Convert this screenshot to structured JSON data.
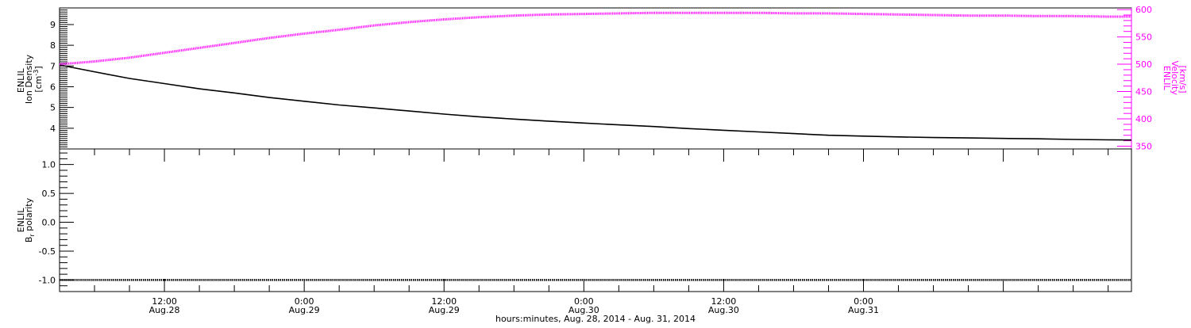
{
  "chart_data": [
    {
      "type": "line",
      "panel": "top",
      "x_range": [
        "2014-08-28T03:00",
        "2014-08-31T23:00"
      ],
      "left_axis": {
        "label_line1": "ENLIL",
        "label_line2": "Ion Density",
        "label_line3": "[cm",
        "label_line3_sup": "-3",
        "label_line3_end": "]",
        "ylim": [
          3.0,
          9.8
        ],
        "ticks": [
          "4",
          "5",
          "6",
          "7",
          "8",
          "9"
        ]
      },
      "right_axis": {
        "label_line1": "ENLIL",
        "label_line2": "Velocity",
        "label_line3": "[km/s]",
        "ylim": [
          345,
          603
        ],
        "ticks": [
          "350",
          "400",
          "450",
          "500",
          "550",
          "600"
        ],
        "color": "#ff00ff"
      },
      "series": [
        {
          "axis": "left",
          "color": "#000000",
          "points": [
            [
              "2014-08-28T03:00",
              7.05
            ],
            [
              "2014-08-28T06:00",
              6.72
            ],
            [
              "2014-08-28T09:00",
              6.4
            ],
            [
              "2014-08-28T12:00",
              6.15
            ],
            [
              "2014-08-28T15:00",
              5.9
            ],
            [
              "2014-08-28T18:00",
              5.7
            ],
            [
              "2014-08-28T21:00",
              5.48
            ],
            [
              "2014-08-29T00:00",
              5.3
            ],
            [
              "2014-08-29T03:00",
              5.12
            ],
            [
              "2014-08-29T06:00",
              4.98
            ],
            [
              "2014-08-29T09:00",
              4.83
            ],
            [
              "2014-08-29T12:00",
              4.68
            ],
            [
              "2014-08-29T15:00",
              4.55
            ],
            [
              "2014-08-29T18:00",
              4.44
            ],
            [
              "2014-08-29T21:00",
              4.34
            ],
            [
              "2014-08-30T00:00",
              4.25
            ],
            [
              "2014-08-30T03:00",
              4.16
            ],
            [
              "2014-08-30T06:00",
              4.08
            ],
            [
              "2014-08-30T09:00",
              3.98
            ],
            [
              "2014-08-30T12:00",
              3.9
            ],
            [
              "2014-08-30T15:00",
              3.82
            ],
            [
              "2014-08-30T18:00",
              3.74
            ],
            [
              "2014-08-30T21:00",
              3.66
            ],
            [
              "2014-08-31T00:00",
              3.62
            ],
            [
              "2014-08-31T03:00",
              3.58
            ],
            [
              "2014-08-31T06:00",
              3.55
            ],
            [
              "2014-08-31T09:00",
              3.53
            ],
            [
              "2014-08-31T12:00",
              3.51
            ],
            [
              "2014-08-31T15:00",
              3.49
            ],
            [
              "2014-08-31T18:00",
              3.46
            ],
            [
              "2014-08-31T21:00",
              3.44
            ],
            [
              "2014-08-31T23:00",
              3.43
            ]
          ]
        },
        {
          "axis": "right",
          "color": "#ff00ff",
          "points": [
            [
              "2014-08-28T03:00",
              500
            ],
            [
              "2014-08-28T06:00",
              505
            ],
            [
              "2014-08-28T09:00",
              512
            ],
            [
              "2014-08-28T12:00",
              521
            ],
            [
              "2014-08-28T15:00",
              530
            ],
            [
              "2014-08-28T18:00",
              539
            ],
            [
              "2014-08-28T21:00",
              548
            ],
            [
              "2014-08-29T00:00",
              556
            ],
            [
              "2014-08-29T03:00",
              563
            ],
            [
              "2014-08-29T06:00",
              571
            ],
            [
              "2014-08-29T09:00",
              577
            ],
            [
              "2014-08-29T12:00",
              582
            ],
            [
              "2014-08-29T15:00",
              586
            ],
            [
              "2014-08-29T18:00",
              589
            ],
            [
              "2014-08-29T21:00",
              591
            ],
            [
              "2014-08-30T00:00",
              592
            ],
            [
              "2014-08-30T03:00",
              593
            ],
            [
              "2014-08-30T06:00",
              594
            ],
            [
              "2014-08-30T09:00",
              594
            ],
            [
              "2014-08-30T12:00",
              594
            ],
            [
              "2014-08-30T15:00",
              594
            ],
            [
              "2014-08-30T18:00",
              593
            ],
            [
              "2014-08-30T21:00",
              593
            ],
            [
              "2014-08-31T00:00",
              592
            ],
            [
              "2014-08-31T03:00",
              591
            ],
            [
              "2014-08-31T06:00",
              590
            ],
            [
              "2014-08-31T09:00",
              589
            ],
            [
              "2014-08-31T12:00",
              589
            ],
            [
              "2014-08-31T15:00",
              588
            ],
            [
              "2014-08-31T18:00",
              588
            ],
            [
              "2014-08-31T21:00",
              587
            ],
            [
              "2014-08-31T23:00",
              587
            ]
          ]
        }
      ]
    },
    {
      "type": "line",
      "panel": "bottom",
      "x_range": [
        "2014-08-28T03:00",
        "2014-08-31T23:00"
      ],
      "left_axis": {
        "label_line1": "ENLIL",
        "label_line2": "B",
        "label_line2_sub": "r",
        "label_line2_end": " polarity",
        "ylim": [
          -1.2,
          1.27
        ],
        "ticks": [
          "-1.0",
          "-0.5",
          "0.0",
          "0.5",
          "1.0"
        ]
      },
      "series": [
        {
          "axis": "left",
          "color": "#000000",
          "points": [
            [
              "2014-08-28T03:00",
              -1.0
            ],
            [
              "2014-08-31T23:00",
              -1.0
            ]
          ]
        }
      ],
      "x_ticks": [
        {
          "time": "2014-08-28T12:00",
          "label1": "12:00",
          "label2": "Aug.28"
        },
        {
          "time": "2014-08-29T00:00",
          "label1": "0:00",
          "label2": "Aug.29"
        },
        {
          "time": "2014-08-29T12:00",
          "label1": "12:00",
          "label2": "Aug.29"
        },
        {
          "time": "2014-08-30T00:00",
          "label1": "0:00",
          "label2": "Aug.30"
        },
        {
          "time": "2014-08-30T12:00",
          "label1": "12:00",
          "label2": "Aug.30"
        },
        {
          "time": "2014-08-31T00:00",
          "label1": "0:00",
          "label2": "Aug.31"
        }
      ],
      "xlabel": "hours:minutes, Aug. 28, 2014 - Aug. 31, 2014"
    }
  ]
}
